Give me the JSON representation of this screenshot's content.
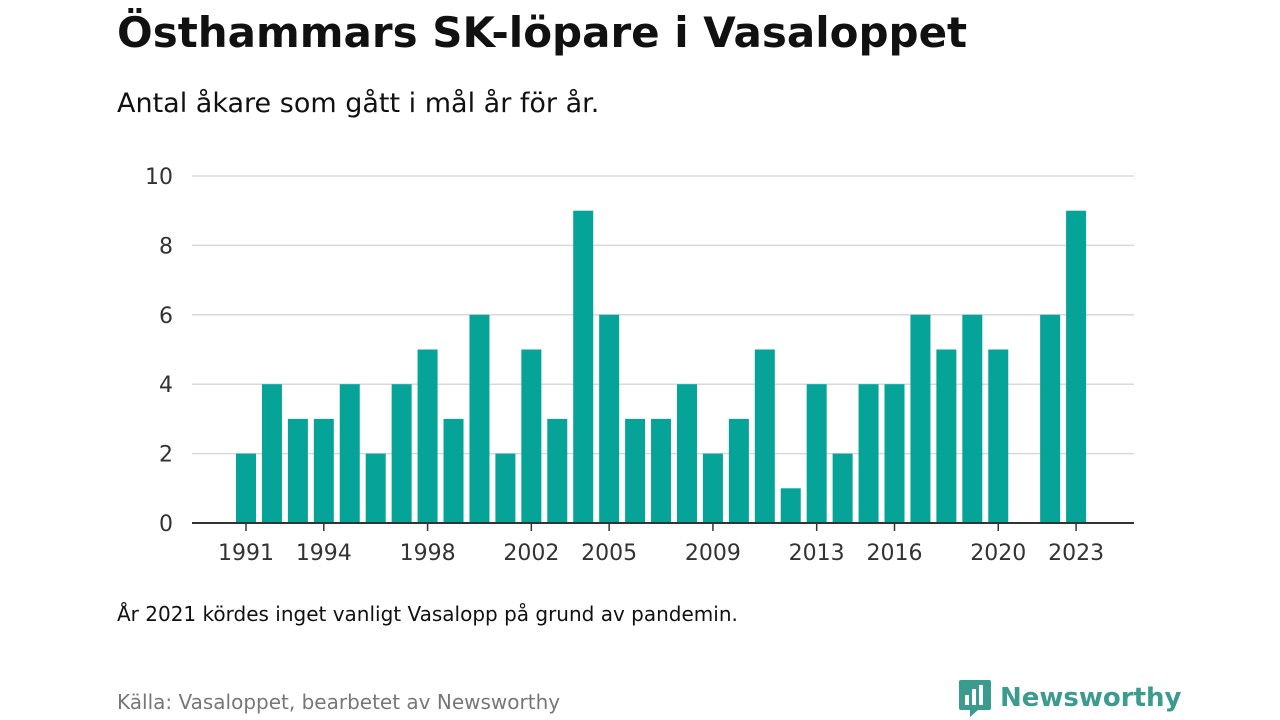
{
  "title": "Östhammars SK-löpare i Vasaloppet",
  "subtitle": "Antal åkare som gått i mål år för år.",
  "note": "År 2021 kördes inget vanligt Vasalopp på grund av pandemin.",
  "source": "Källa: Vasaloppet, bearbetet av Newsworthy",
  "brand": {
    "name": "Newsworthy",
    "color": "#3a9b8e"
  },
  "chart_data": {
    "type": "bar",
    "x": [
      1991,
      1992,
      1993,
      1994,
      1995,
      1996,
      1997,
      1998,
      1999,
      2000,
      2001,
      2002,
      2003,
      2004,
      2005,
      2006,
      2007,
      2008,
      2009,
      2010,
      2011,
      2012,
      2013,
      2014,
      2015,
      2016,
      2017,
      2018,
      2019,
      2020,
      2021,
      2022,
      2023
    ],
    "values": [
      2,
      4,
      3,
      3,
      4,
      2,
      4,
      5,
      3,
      6,
      2,
      5,
      3,
      9,
      6,
      3,
      3,
      4,
      2,
      3,
      5,
      1,
      4,
      2,
      4,
      4,
      6,
      5,
      6,
      5,
      null,
      6,
      9
    ],
    "x_ticks": [
      1991,
      1994,
      1998,
      2002,
      2005,
      2009,
      2013,
      2016,
      2020,
      2023
    ],
    "y_ticks": [
      0,
      2,
      4,
      6,
      8,
      10
    ],
    "ylim": [
      0,
      10
    ],
    "xlim": [
      1991,
      2023
    ],
    "bar_color": "#06a399",
    "grid": true,
    "xlabel": "",
    "ylabel": ""
  }
}
